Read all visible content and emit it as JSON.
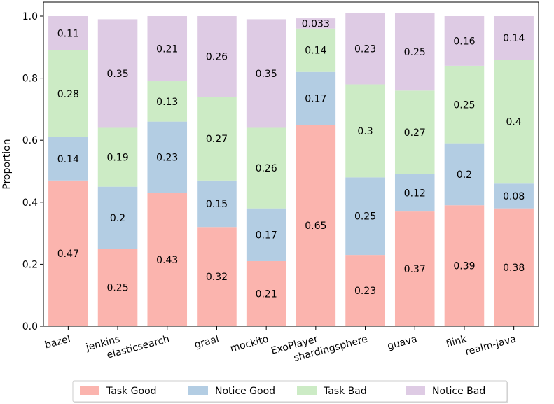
{
  "chart_data": {
    "type": "bar",
    "stacked": true,
    "ylabel": "Proportion",
    "xlabel": "",
    "ylim": [
      0,
      1.0
    ],
    "yticks": [
      "0.0",
      "0.2",
      "0.4",
      "0.6",
      "0.8",
      "1.0"
    ],
    "legend_position": "bottom",
    "categories": [
      "bazel",
      "jenkins",
      "elasticsearch",
      "graal",
      "mockito",
      "ExoPlayer",
      "shardingsphere",
      "guava",
      "flink",
      "realm-java"
    ],
    "series": [
      {
        "name": "Task Good",
        "color": "#fbb4ae",
        "values": [
          0.47,
          0.25,
          0.43,
          0.32,
          0.21,
          0.65,
          0.23,
          0.37,
          0.39,
          0.38
        ],
        "labels": [
          "0.47",
          "0.25",
          "0.43",
          "0.32",
          "0.21",
          "0.65",
          "0.23",
          "0.37",
          "0.39",
          "0.38"
        ]
      },
      {
        "name": "Notice Good",
        "color": "#b3cde3",
        "values": [
          0.14,
          0.2,
          0.23,
          0.15,
          0.17,
          0.17,
          0.25,
          0.12,
          0.2,
          0.08
        ],
        "labels": [
          "0.14",
          "0.2",
          "0.23",
          "0.15",
          "0.17",
          "0.17",
          "0.25",
          "0.12",
          "0.2",
          "0.08"
        ]
      },
      {
        "name": "Task Bad",
        "color": "#ccebc5",
        "values": [
          0.28,
          0.19,
          0.13,
          0.27,
          0.26,
          0.14,
          0.3,
          0.27,
          0.25,
          0.4
        ],
        "labels": [
          "0.28",
          "0.19",
          "0.13",
          "0.27",
          "0.26",
          "0.14",
          "0.3",
          "0.27",
          "0.25",
          "0.4"
        ]
      },
      {
        "name": "Notice Bad",
        "color": "#decbe4",
        "values": [
          0.11,
          0.35,
          0.21,
          0.26,
          0.35,
          0.033,
          0.23,
          0.25,
          0.16,
          0.14
        ],
        "labels": [
          "0.11",
          "0.35",
          "0.21",
          "0.26",
          "0.35",
          "0.033",
          "0.23",
          "0.25",
          "0.16",
          "0.14"
        ]
      }
    ]
  }
}
